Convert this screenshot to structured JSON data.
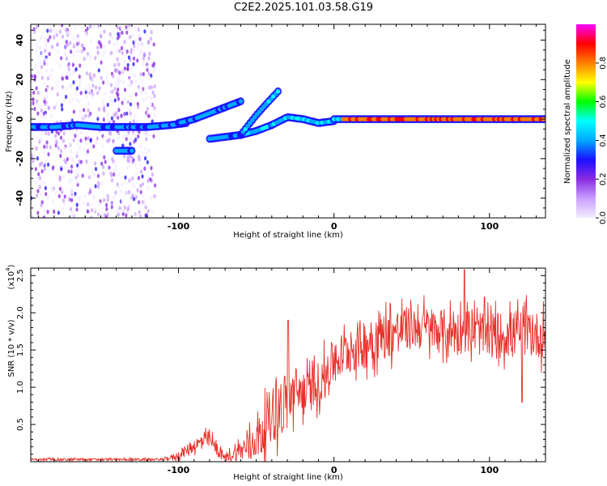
{
  "title": "C2E2.2025.101.03.58.G19",
  "chart_data": [
    {
      "type": "heatmap",
      "xlabel": "Height of straight line (km)",
      "ylabel": "Frequency (Hz)",
      "xlim": [
        -195,
        136
      ],
      "ylim": [
        -50,
        48
      ],
      "x_ticks": [
        -100,
        0,
        100
      ],
      "y_ticks": [
        -40,
        -20,
        0,
        20,
        40
      ],
      "colorbar": {
        "label": "Normalized spectral amplitude",
        "range": [
          0,
          1
        ],
        "ticks": [
          "0.0",
          "0.2",
          "0.4",
          "0.6",
          "0.8"
        ],
        "tick_values": [
          0,
          0.2,
          0.4,
          0.6,
          0.8
        ],
        "colors": [
          "#f4ecff",
          "#c9a0ff",
          "#8a2be2",
          "#1a10ff",
          "#00a8ff",
          "#00ffff",
          "#00ff00",
          "#ffff00",
          "#ff8000",
          "#ff0000",
          "#ff00ff"
        ]
      },
      "tracks": [
        {
          "x": [
            -195,
            -180,
            -165,
            -150,
            -135,
            -120,
            -105,
            -95
          ],
          "y": [
            -4,
            -4,
            -3,
            -4,
            -4,
            -4,
            -3,
            -2
          ]
        },
        {
          "x": [
            -100,
            -90,
            -80,
            -70,
            -60
          ],
          "y": [
            -2,
            0,
            3,
            6,
            9
          ]
        },
        {
          "x": [
            -80,
            -70,
            -60,
            -50,
            -40
          ],
          "y": [
            -10,
            -9,
            -8,
            -6,
            -3
          ]
        },
        {
          "x": [
            -60,
            -50,
            -42,
            -36
          ],
          "y": [
            -8,
            2,
            9,
            14
          ]
        },
        {
          "x": [
            -40,
            -30,
            -20,
            -10,
            0
          ],
          "y": [
            -3,
            1,
            0,
            -2,
            -1
          ]
        },
        {
          "x": [
            0,
            20,
            40,
            60,
            80,
            100,
            120,
            136
          ],
          "y": [
            0,
            0,
            0,
            0,
            0,
            0,
            0,
            0
          ]
        },
        {
          "x": [
            -140,
            -135,
            -130
          ],
          "y": [
            -16,
            -16,
            -16
          ]
        }
      ],
      "noise_x_range": [
        -195,
        -115
      ]
    },
    {
      "type": "line",
      "xlabel": "Height of straight line (km)",
      "ylabel": "SNR (10 * v/v)",
      "y_multiplier": "(x10",
      "y_multiplier_exp": "4",
      "y_multiplier_close": ")",
      "xlim": [
        -195,
        136
      ],
      "ylim": [
        0,
        2.6
      ],
      "x_ticks": [
        -100,
        0,
        100
      ],
      "y_ticks": [
        0.5,
        1.0,
        1.5,
        2.0,
        2.5
      ],
      "y_tick_labels": [
        "0.5",
        "1.0",
        "1.5",
        "2.0",
        "2.5"
      ],
      "color": "#e8312a",
      "envelope": {
        "x": [
          -195,
          -150,
          -110,
          -100,
          -90,
          -80,
          -75,
          -70,
          -60,
          -50,
          -45,
          -40,
          -30,
          -25,
          -20,
          -10,
          0,
          10,
          20,
          30,
          40,
          50,
          60,
          70,
          80,
          90,
          100,
          110,
          120,
          130,
          136
        ],
        "y": [
          0.03,
          0.03,
          0.03,
          0.08,
          0.22,
          0.3,
          0.15,
          0.05,
          0.15,
          0.3,
          0.45,
          0.65,
          0.8,
          0.95,
          0.9,
          1.05,
          1.35,
          1.5,
          1.6,
          1.7,
          1.75,
          1.8,
          1.8,
          1.75,
          1.75,
          1.75,
          1.7,
          1.7,
          1.75,
          1.7,
          1.7
        ]
      },
      "noise_amp": {
        "x": [
          -195,
          -110,
          -100,
          -80,
          -70,
          -50,
          -35,
          -20,
          0,
          20,
          50,
          136
        ],
        "y": [
          0.015,
          0.015,
          0.06,
          0.12,
          0.05,
          0.25,
          0.45,
          0.3,
          0.3,
          0.35,
          0.3,
          0.32
        ]
      },
      "peaks": [
        {
          "x": -29.5,
          "y": 1.9
        },
        {
          "x": 84,
          "y": 2.58
        },
        {
          "x": 121,
          "y": 0.8
        }
      ]
    }
  ]
}
